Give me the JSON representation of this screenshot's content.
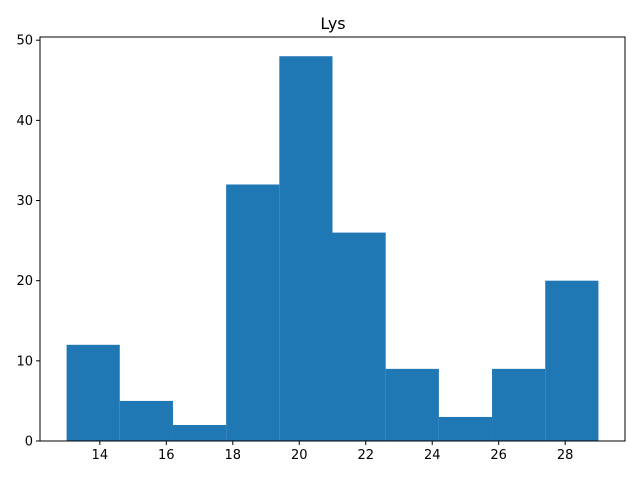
{
  "chart_data": {
    "type": "bar",
    "title": "Lys",
    "xlabel": "",
    "ylabel": "",
    "bar_color": "#1f77b4",
    "bin_edges": [
      13.0,
      14.6,
      16.2,
      17.8,
      19.4,
      21.0,
      22.6,
      24.2,
      25.8,
      27.4,
      29.0
    ],
    "values": [
      12,
      5,
      2,
      32,
      48,
      26,
      9,
      3,
      9,
      20
    ],
    "xlim": [
      12.2,
      29.8
    ],
    "ylim": [
      0,
      50.4
    ],
    "xticks": [
      14,
      16,
      18,
      20,
      22,
      24,
      26,
      28
    ],
    "xtick_labels": [
      "14",
      "16",
      "18",
      "20",
      "22",
      "24",
      "26",
      "28"
    ],
    "yticks": [
      0,
      10,
      20,
      30,
      40,
      50
    ],
    "ytick_labels": [
      "0",
      "10",
      "20",
      "30",
      "40",
      "50"
    ],
    "grid": false,
    "legend": "none"
  }
}
